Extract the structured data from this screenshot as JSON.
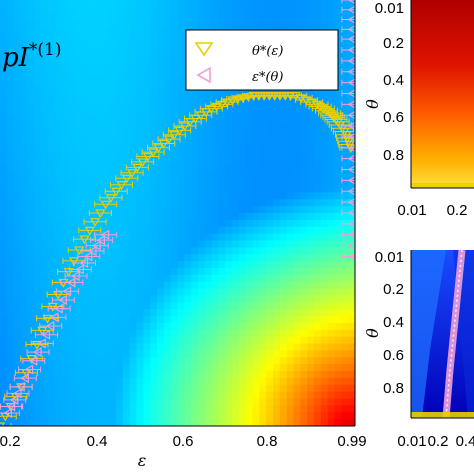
{
  "chart_data": [
    {
      "type": "heatmap",
      "title": "pI*(1)",
      "title_main": "pI",
      "title_sup": "*(1)",
      "xlabel": "ε",
      "xlim": [
        0.15,
        0.99
      ],
      "xticks": [
        "0.2",
        "0.4",
        "0.6",
        "0.8",
        "0.99"
      ],
      "xtick_values": [
        0.2,
        0.4,
        0.6,
        0.8,
        0.99
      ],
      "colormap": "jet",
      "legend_position": "top-right",
      "series": [
        {
          "name": "θ*(ε)",
          "marker": "triangle-down",
          "color": "#e8d000",
          "x": [
            0.15,
            0.2,
            0.25,
            0.3,
            0.35,
            0.4,
            0.45,
            0.5,
            0.55,
            0.6,
            0.65,
            0.7,
            0.75,
            0.8,
            0.85,
            0.9,
            0.93,
            0.95,
            0.97,
            0.98
          ],
          "y": [
            0.99,
            0.9,
            0.77,
            0.66,
            0.56,
            0.48,
            0.42,
            0.37,
            0.33,
            0.29,
            0.26,
            0.24,
            0.23,
            0.23,
            0.23,
            0.25,
            0.27,
            0.29,
            0.32,
            0.35
          ]
        },
        {
          "name": "ε*(θ)",
          "marker": "triangle-left",
          "color": "#f0a0d8",
          "x": [
            0.17,
            0.2,
            0.24,
            0.28,
            0.32,
            0.36,
            0.4
          ],
          "y": [
            0.96,
            0.9,
            0.82,
            0.74,
            0.66,
            0.6,
            0.55
          ]
        },
        {
          "name": "",
          "marker": "triangle-left",
          "color": "#f0a0d8",
          "x": [
            0.985,
            0.985,
            0.985,
            0.985,
            0.985,
            0.985,
            0.985
          ],
          "y": [
            0.01,
            0.1,
            0.2,
            0.3,
            0.4,
            0.5,
            0.6
          ]
        }
      ]
    },
    {
      "type": "heatmap",
      "ylabel": "θ",
      "yticks": [
        "0.01",
        "0.2",
        "0.4",
        "0.6",
        "0.8"
      ],
      "xticks": [
        "0.01",
        "0.2"
      ],
      "colormap": "hot"
    },
    {
      "type": "heatmap",
      "ylabel": "θ",
      "yticks": [
        "0.01",
        "0.2",
        "0.4",
        "0.6",
        "0.8"
      ],
      "xticks": [
        "0.01",
        "0.2",
        "0.4"
      ],
      "colormap": "jet"
    }
  ]
}
